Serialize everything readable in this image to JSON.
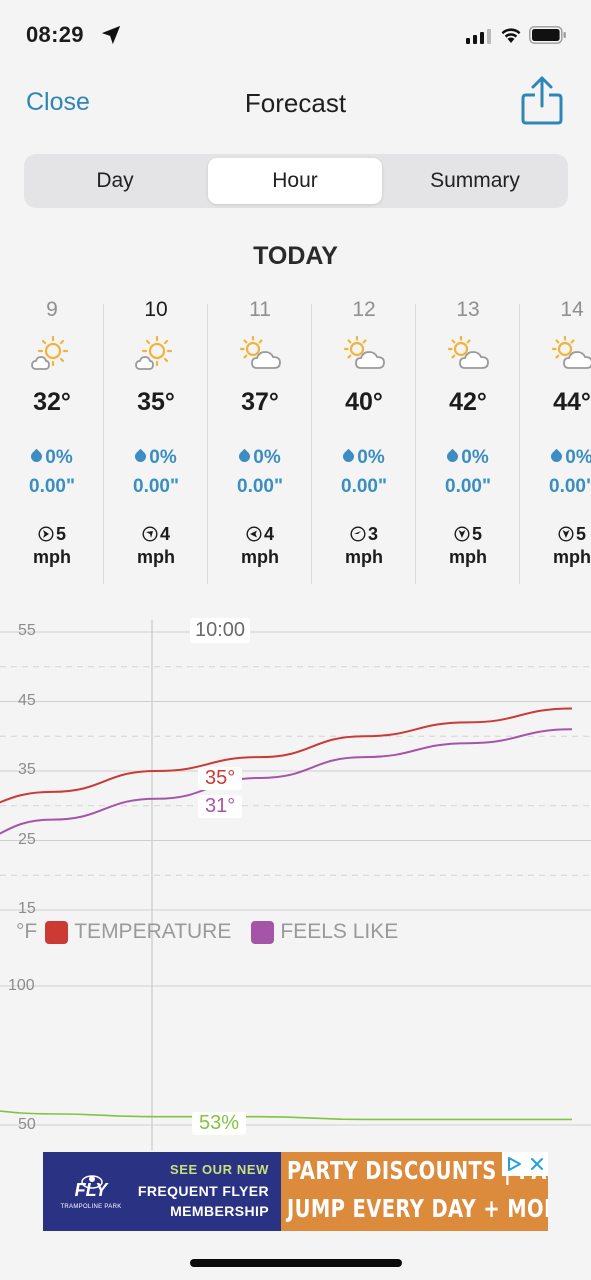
{
  "status_bar": {
    "time": "08:29"
  },
  "nav": {
    "close_label": "Close",
    "title": "Forecast"
  },
  "tabs": [
    {
      "label": "Day",
      "active": false
    },
    {
      "label": "Hour",
      "active": true
    },
    {
      "label": "Summary",
      "active": false
    }
  ],
  "section_title": "TODAY",
  "hours": [
    {
      "hour": "9",
      "icon": "partly-sunny-icon",
      "temp": "32°",
      "precip_pct": "0%",
      "precip_amt": "0.00\"",
      "wind": "5",
      "wind_unit": "mph",
      "wind_icon": "wind-direction-icon"
    },
    {
      "hour": "10",
      "icon": "partly-sunny-icon",
      "temp": "35°",
      "precip_pct": "0%",
      "precip_amt": "0.00\"",
      "wind": "4",
      "wind_unit": "mph",
      "wind_icon": "wind-direction-icon"
    },
    {
      "hour": "11",
      "icon": "partly-cloudy-icon",
      "temp": "37°",
      "precip_pct": "0%",
      "precip_amt": "0.00\"",
      "wind": "4",
      "wind_unit": "mph",
      "wind_icon": "wind-direction-icon"
    },
    {
      "hour": "12",
      "icon": "partly-cloudy-icon",
      "temp": "40°",
      "precip_pct": "0%",
      "precip_amt": "0.00\"",
      "wind": "3",
      "wind_unit": "mph",
      "wind_icon": "wind-direction-icon"
    },
    {
      "hour": "13",
      "icon": "partly-cloudy-icon",
      "temp": "42°",
      "precip_pct": "0%",
      "precip_amt": "0.00\"",
      "wind": "5",
      "wind_unit": "mph",
      "wind_icon": "wind-direction-icon"
    },
    {
      "hour": "14",
      "icon": "partly-cloudy-icon",
      "temp": "44°",
      "precip_pct": "0%",
      "precip_amt": "0.00\"",
      "wind": "5",
      "wind_unit": "mph",
      "wind_icon": "wind-direction-icon"
    }
  ],
  "chart_data": [
    {
      "type": "line",
      "yticks": [
        "55",
        "45",
        "35",
        "25",
        "15"
      ],
      "ylim": [
        15,
        55
      ],
      "unit_label": "°F",
      "grid": true,
      "cursor_label": "10:00",
      "x": [
        8,
        9,
        10,
        11,
        12,
        13,
        14
      ],
      "series": [
        {
          "name": "TEMPERATURE",
          "color": "#cc3a35",
          "values": [
            29,
            32,
            35,
            37,
            40,
            42,
            44
          ],
          "cursor_value": "35°"
        },
        {
          "name": "FEELS LIKE",
          "color": "#a555a8",
          "values": [
            24,
            28,
            31,
            34,
            37,
            39,
            41
          ],
          "cursor_value": "31°"
        }
      ]
    },
    {
      "type": "line",
      "yticks": [
        "100",
        "50"
      ],
      "ylim": [
        50,
        100
      ],
      "grid": true,
      "x": [
        8,
        9,
        10,
        11,
        12,
        13,
        14
      ],
      "series": [
        {
          "color": "#82c341",
          "values": [
            56,
            54,
            53,
            53,
            52,
            52,
            52
          ],
          "cursor_value": "53%"
        }
      ]
    }
  ],
  "ad": {
    "logo": "FLY",
    "logo_sub": "TRAMPOLINE PARK",
    "line1": "SEE OUR NEW",
    "line2": "FREQUENT FLYER",
    "line3": "MEMBERSHIP",
    "right_line1": "PARTY DISCOUNTS | PASSES",
    "right_line2": "JUMP EVERY DAY + MORE!",
    "colors": {
      "left": "#2a3284",
      "right": "#dc8a3c"
    }
  },
  "colors": {
    "accent": "#2e86b6",
    "precip": "#3b8ec2"
  }
}
